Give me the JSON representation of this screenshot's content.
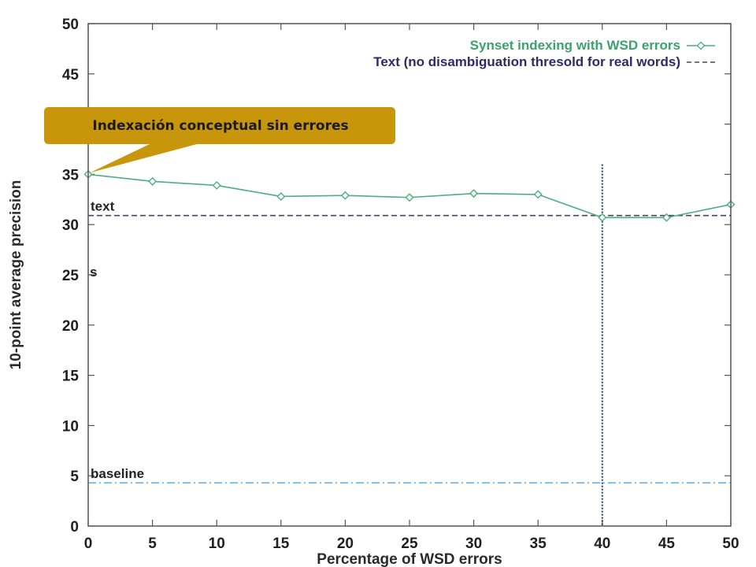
{
  "chart_data": {
    "type": "line",
    "x": [
      0,
      5,
      10,
      15,
      20,
      25,
      30,
      35,
      40,
      45,
      50
    ],
    "xlim": [
      0,
      50
    ],
    "ylim": [
      0,
      50
    ],
    "xticks": [
      "0",
      "5",
      "10",
      "15",
      "20",
      "25",
      "30",
      "35",
      "40",
      "45",
      "50"
    ],
    "yticks": [
      "0",
      "5",
      "10",
      "15",
      "20",
      "25",
      "30",
      "35",
      "40",
      "45",
      "50"
    ],
    "xlabel": "Percentage of WSD errors",
    "ylabel": "10-point average precision",
    "grid": false,
    "legend_position": "top-right",
    "series": [
      {
        "name": "Synset indexing with WSD errors",
        "color": "#4caf7d",
        "marker": "diamond",
        "values": [
          35.0,
          34.3,
          33.9,
          32.8,
          32.9,
          32.7,
          33.1,
          33.0,
          30.7,
          30.7,
          32.0
        ]
      },
      {
        "name": "Text (no disambiguation thresold for real words)",
        "color": "#444466",
        "style": "dashed",
        "constant": 30.9
      }
    ],
    "reference_lines": [
      {
        "label": "text",
        "y": 30.9,
        "color": "#444466",
        "style": "dashed"
      },
      {
        "label": "baseline",
        "y": 4.3,
        "color": "#5aaee0",
        "style": "dash-dot"
      },
      {
        "label": "",
        "x": 40,
        "color": "#1a3d6e",
        "style": "dotted",
        "orientation": "vertical"
      }
    ],
    "annotations": [
      {
        "label": "s",
        "y": 25.3
      }
    ],
    "callout": {
      "text": "Indexación conceptual sin errores",
      "points_to_x": 0,
      "points_to_y": 35.0,
      "color": "#c8960a"
    }
  }
}
